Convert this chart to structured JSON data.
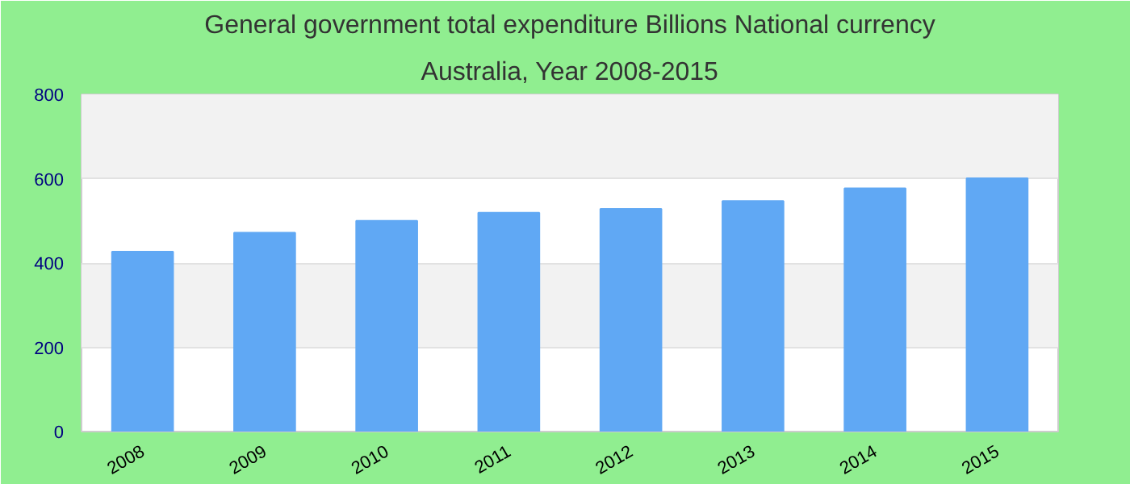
{
  "chart_data": {
    "type": "bar",
    "title": "General government total expenditure Billions National currency",
    "subtitle": "Australia, Year 2008-2015",
    "categories": [
      "2008",
      "2009",
      "2010",
      "2011",
      "2012",
      "2013",
      "2014",
      "2015"
    ],
    "series": [
      {
        "color": "#60a8f4",
        "values": [
          427,
          472,
          500,
          519,
          528,
          547,
          577,
          601
        ]
      }
    ],
    "ylim": [
      0,
      800
    ],
    "yticks": [
      0,
      200,
      400,
      600,
      800
    ],
    "grid": "y"
  }
}
